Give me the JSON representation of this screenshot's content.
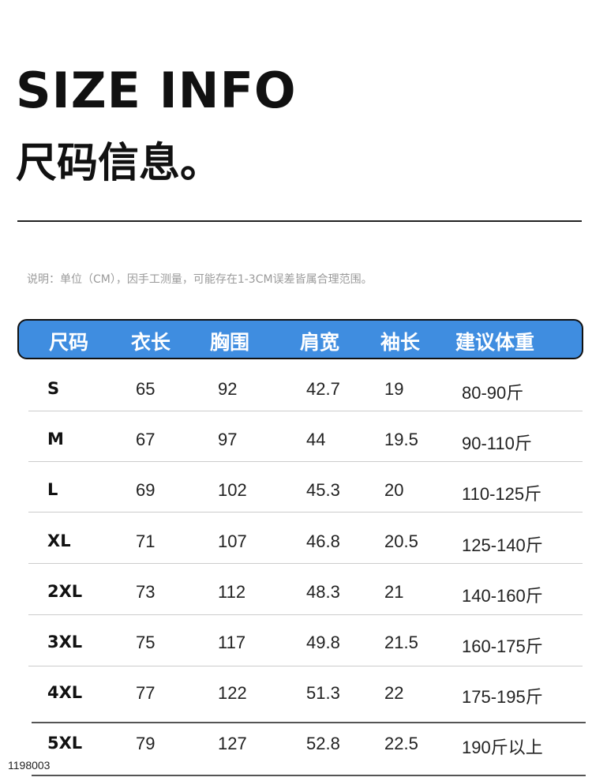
{
  "title_en": "SIZE INFO",
  "title_cn": "尺码信息。",
  "note": "说明：单位（CM），因手工测量，可能存在1-3CM误差皆属合理范围。",
  "header_color": "#3f8de0",
  "columns": [
    "尺码",
    "衣长",
    "胸围",
    "肩宽",
    "袖长",
    "建议体重"
  ],
  "rows": [
    [
      "S",
      "65",
      "92",
      "42.7",
      "19",
      "80-90斤"
    ],
    [
      "M",
      "67",
      "97",
      "44",
      "19.5",
      "90-110斤"
    ],
    [
      "L",
      "69",
      "102",
      "45.3",
      "20",
      "110-125斤"
    ],
    [
      "XL",
      "71",
      "107",
      "46.8",
      "20.5",
      "125-140斤"
    ],
    [
      "2XL",
      "73",
      "112",
      "48.3",
      "21",
      "140-160斤"
    ],
    [
      "3XL",
      "75",
      "117",
      "49.8",
      "21.5",
      "160-175斤"
    ],
    [
      "4XL",
      "77",
      "122",
      "51.3",
      "22",
      "175-195斤"
    ],
    [
      "5XL",
      "79",
      "127",
      "52.8",
      "22.5",
      "190斤以上"
    ]
  ],
  "code": "1198003"
}
